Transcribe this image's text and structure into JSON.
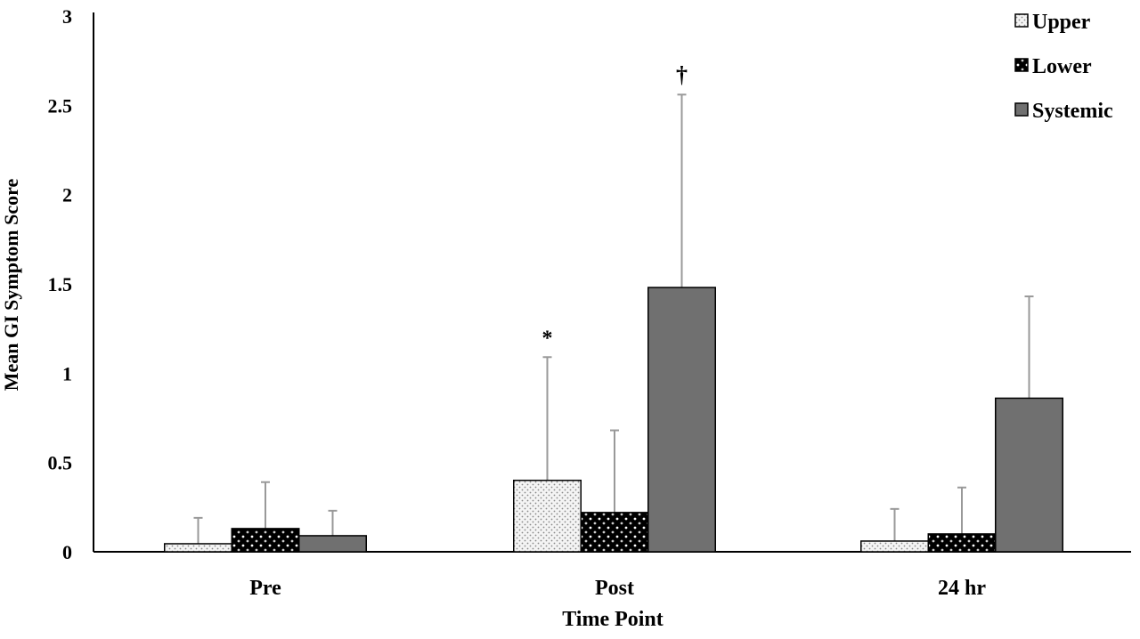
{
  "chart_data": {
    "type": "bar",
    "title": "",
    "xlabel": "Time Point",
    "ylabel": "Mean GI Symptom Score",
    "ylim": [
      0,
      3
    ],
    "yticks": [
      "0",
      "0.5",
      "1",
      "1.5",
      "2",
      "2.5",
      "3"
    ],
    "categories": [
      "Pre",
      "Post",
      "24 hr"
    ],
    "legend_position": "top-right",
    "series": [
      {
        "name": "Upper",
        "values": [
          0.045,
          0.4,
          0.06
        ],
        "error": [
          0.145,
          0.69,
          0.18
        ],
        "color": "#e8e8e8",
        "pattern": "light-dots"
      },
      {
        "name": "Lower",
        "values": [
          0.13,
          0.22,
          0.1
        ],
        "error": [
          0.26,
          0.46,
          0.26
        ],
        "color": "#000000",
        "pattern": "white-dots"
      },
      {
        "name": "Systemic",
        "values": [
          0.09,
          1.48,
          0.86
        ],
        "error": [
          0.14,
          1.08,
          0.57
        ],
        "color": "#707070",
        "pattern": "solid"
      }
    ],
    "annotations": [
      {
        "text": "*",
        "category": "Post",
        "series": "Upper"
      },
      {
        "text": "†",
        "category": "Post",
        "series": "Systemic"
      }
    ]
  }
}
